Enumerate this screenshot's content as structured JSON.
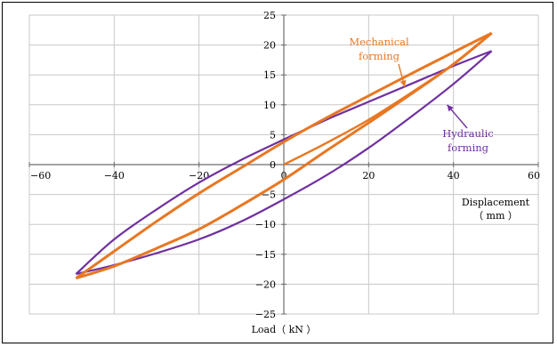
{
  "chart_data": {
    "type": "line",
    "title": "",
    "xlabel": "Displacement\n（ mm ）",
    "ylabel": "Load（ kN ）",
    "xlim": [
      -60,
      60
    ],
    "ylim": [
      -25,
      25
    ],
    "x_ticks": [
      -60,
      -40,
      -20,
      0,
      20,
      40,
      60
    ],
    "y_ticks": [
      25,
      20,
      15,
      10,
      5,
      0,
      -5,
      -10,
      -15,
      -20,
      -25
    ],
    "grid": true,
    "legend": "none (inline annotations)",
    "series": [
      {
        "name": "Mechanical forming",
        "color": "#e87722",
        "loop_upper": [
          [
            -49,
            -19
          ],
          [
            -40,
            -14.5
          ],
          [
            -30,
            -9.5
          ],
          [
            -20,
            -4.8
          ],
          [
            -10,
            -0.5
          ],
          [
            0,
            3.8
          ],
          [
            10,
            7.8
          ],
          [
            20,
            11.5
          ],
          [
            30,
            15.2
          ],
          [
            40,
            18.8
          ],
          [
            49,
            22
          ]
        ],
        "loop_lower": [
          [
            -49,
            -19
          ],
          [
            -40,
            -17.0
          ],
          [
            -30,
            -14.0
          ],
          [
            -20,
            -10.8
          ],
          [
            -10,
            -6.8
          ],
          [
            0,
            -2.5
          ],
          [
            10,
            2.3
          ],
          [
            20,
            7.0
          ],
          [
            30,
            11.8
          ],
          [
            40,
            16.8
          ],
          [
            49,
            22
          ]
        ],
        "initial": [
          [
            0,
            0
          ],
          [
            10,
            3.6
          ],
          [
            20,
            7.5
          ],
          [
            30,
            12.0
          ],
          [
            40,
            16.8
          ],
          [
            49,
            22
          ]
        ]
      },
      {
        "name": "Hydraulic forming",
        "color": "#7030a0",
        "loop_upper": [
          [
            -49,
            -18.3
          ],
          [
            -40,
            -12.5
          ],
          [
            -30,
            -7.5
          ],
          [
            -20,
            -3.0
          ],
          [
            -10,
            0.8
          ],
          [
            0,
            4.2
          ],
          [
            10,
            7.5
          ],
          [
            20,
            10.5
          ],
          [
            30,
            13.5
          ],
          [
            40,
            16.5
          ],
          [
            49,
            19
          ]
        ],
        "loop_lower": [
          [
            -49,
            -18.3
          ],
          [
            -40,
            -16.8
          ],
          [
            -30,
            -14.8
          ],
          [
            -20,
            -12.5
          ],
          [
            -10,
            -9.5
          ],
          [
            0,
            -5.8
          ],
          [
            10,
            -1.8
          ],
          [
            20,
            2.8
          ],
          [
            30,
            8.0
          ],
          [
            40,
            13.5
          ],
          [
            49,
            19
          ]
        ]
      }
    ],
    "annotations": [
      {
        "series": "Mechanical forming",
        "text_lines": [
          "Mechanical",
          "forming"
        ],
        "arrow_to": [
          28.5,
          13
        ]
      },
      {
        "series": "Hydraulic forming",
        "text_lines": [
          "Hydraulic",
          "forming"
        ],
        "arrow_to": [
          38.5,
          10
        ]
      }
    ]
  }
}
